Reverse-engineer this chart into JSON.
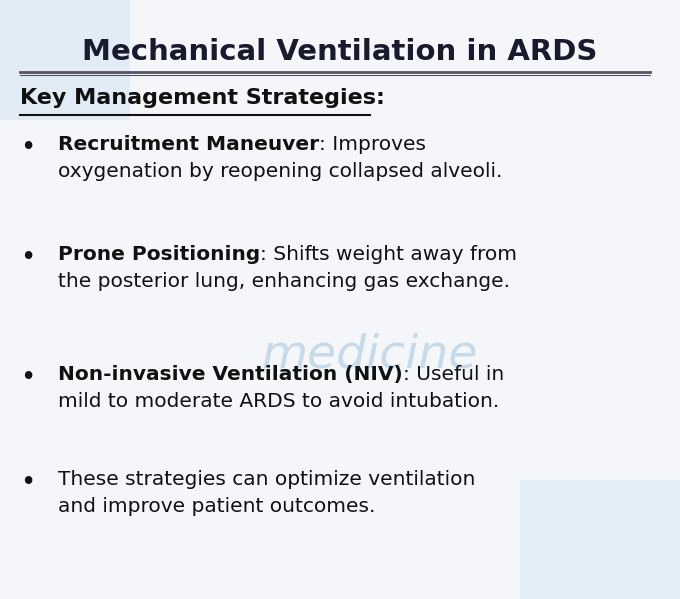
{
  "title": "Mechanical Ventilation in ARDS",
  "subtitle": "Key Management Strategies:",
  "bg_color": "#f4f6f9",
  "title_color": "#1a1a2e",
  "text_color": "#111111",
  "watermark_text": "medicine",
  "bullets": [
    {
      "bold": "Recruitment Maneuver",
      "normal": ": Improves\noxygenation by reopening collapsed alveoli."
    },
    {
      "bold": "Prone Positioning",
      "normal": ": Shifts weight away from\nthe posterior lung, enhancing gas exchange."
    },
    {
      "bold": "Non-invasive Ventilation (NIV)",
      "normal": ": Useful in\nmild to moderate ARDS to avoid intubation."
    },
    {
      "bold": "",
      "normal": "These strategies can optimize ventilation\nand improve patient outcomes."
    }
  ],
  "title_fontsize": 21,
  "subtitle_fontsize": 16,
  "bullet_fontsize": 14.5,
  "figsize": [
    6.8,
    5.99
  ],
  "dpi": 100
}
